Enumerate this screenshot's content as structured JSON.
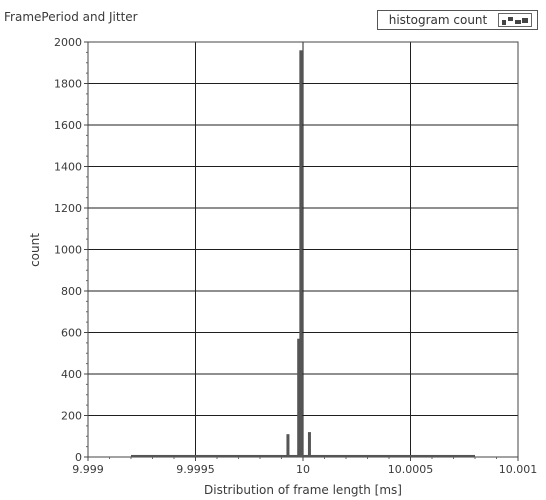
{
  "chart_data": {
    "type": "bar",
    "title": "FramePeriod and Jitter",
    "xlabel": "Distribution of frame length [ms]",
    "ylabel": "count",
    "legend": {
      "label": "histogram count",
      "placement": "top-right"
    },
    "xlim": [
      9.999,
      10.001
    ],
    "ylim": [
      0,
      2000
    ],
    "x_ticks": [
      "9.999",
      "9.9995",
      "10",
      "10.0005",
      "10.001"
    ],
    "y_ticks": [
      "0",
      "200",
      "400",
      "600",
      "800",
      "1000",
      "1200",
      "1400",
      "1600",
      "1800",
      "2000"
    ],
    "grid": true,
    "bar_color": "#555555",
    "bars": [
      {
        "x": 9.99993,
        "y": 110
      },
      {
        "x": 9.99998,
        "y": 570
      },
      {
        "x": 9.99999,
        "y": 1960
      },
      {
        "x": 10.00003,
        "y": 120
      }
    ],
    "baseline_segment": {
      "x_start": 9.9992,
      "x_end": 10.0008,
      "y": 5
    }
  }
}
